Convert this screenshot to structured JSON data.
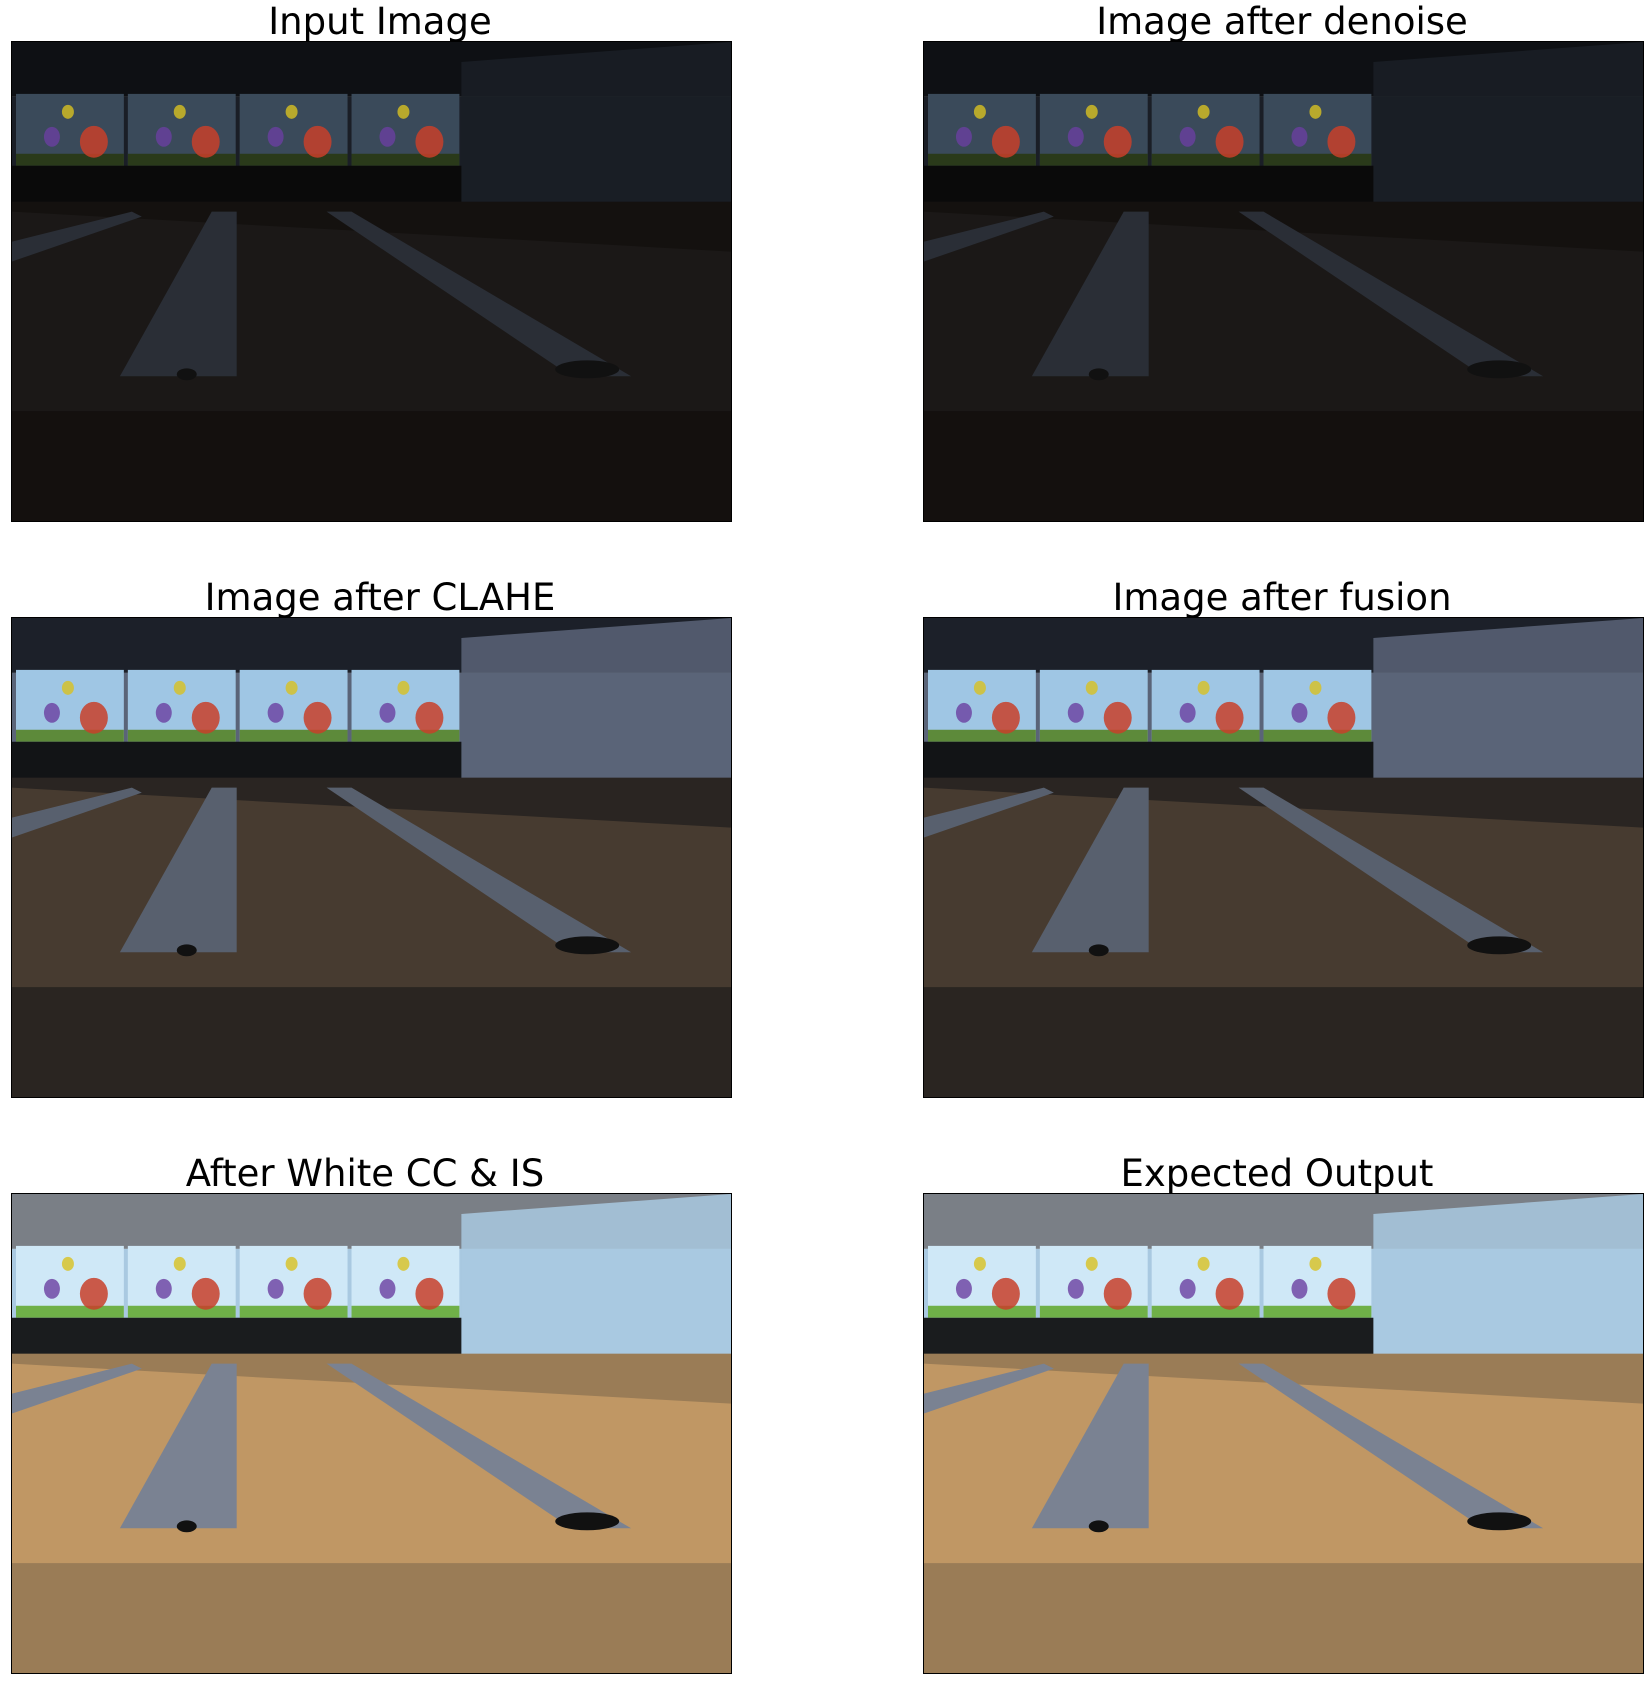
{
  "figure": {
    "panels": [
      {
        "title": "Input Image",
        "tone": "dark"
      },
      {
        "title": "Image after denoise",
        "tone": "dark"
      },
      {
        "title": "Image after CLAHE",
        "tone": "mid"
      },
      {
        "title": "Image after fusion",
        "tone": "mid"
      },
      {
        "title": "After White CC & IS",
        "tone": "bright"
      },
      {
        "title": "Expected Output",
        "tone": "bright"
      }
    ]
  },
  "palette": {
    "dark": {
      "ceiling": "#0e1014",
      "wall": "#1a1e26",
      "floor": "#14110f",
      "lane": "#1c1a18",
      "gutter": "#2a2e36",
      "banner_sky": "#3a4a5a",
      "banner_grass": "#2a3a1a",
      "pin_strip": "#0a0a0a"
    },
    "mid": {
      "ceiling": "#1c2029",
      "wall": "#5a6478",
      "floor": "#2a2522",
      "lane": "#4a3e32",
      "gutter": "#58606e",
      "banner_sky": "#9fc6e4",
      "banner_grass": "#5d8a3a",
      "pin_strip": "#121416"
    },
    "bright": {
      "ceiling": "#7a7f86",
      "wall": "#a9c9e1",
      "floor": "#9a7c56",
      "lane": "#c49a66",
      "gutter": "#7a8292",
      "banner_sky": "#cfe8f7",
      "banner_grass": "#6fb048",
      "pin_strip": "#1a1c1e"
    }
  }
}
